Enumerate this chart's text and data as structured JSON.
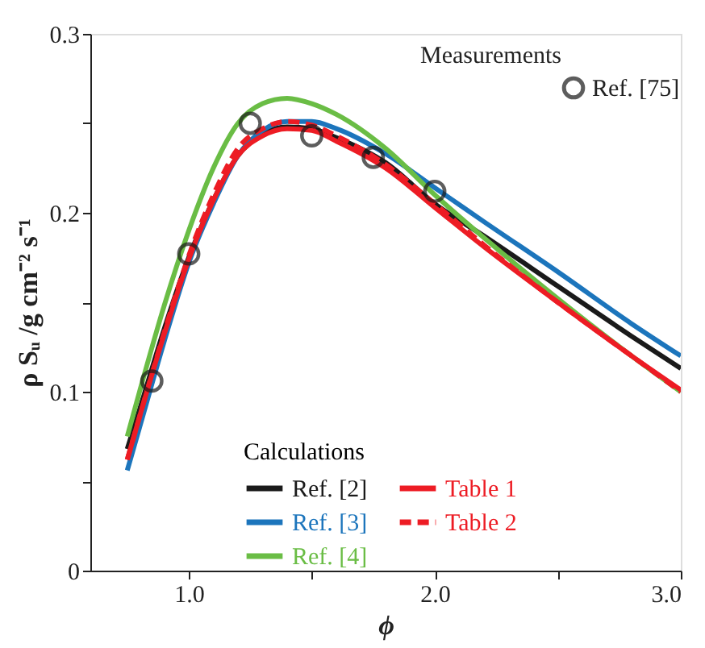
{
  "chart_data": {
    "type": "line",
    "xlabel": "ϕ",
    "ylabel": "ρ Sᵤ /g cm⁻² s⁻¹",
    "legend_title": "Calculations",
    "annotations": [
      "Measurements"
    ],
    "x": [
      0.75,
      0.8,
      0.9,
      1.0,
      1.1,
      1.2,
      1.3,
      1.4,
      1.5,
      1.6,
      1.8,
      2.0,
      2.2,
      2.5,
      2.8,
      3.0
    ],
    "series": [
      {
        "name": "Ref. [75]",
        "type": "scatter",
        "marker": "circle",
        "color": "#1a1a1a",
        "x": [
          0.85,
          1.0,
          1.25,
          1.5,
          1.75,
          2.0
        ],
        "values": [
          0.106,
          0.177,
          0.25,
          0.243,
          0.231,
          0.212
        ]
      },
      {
        "name": "Ref. [2]",
        "line_style": "solid",
        "color": "#1a1a1a",
        "values": [
          0.068,
          0.09,
          0.135,
          0.175,
          0.207,
          0.232,
          0.244,
          0.248,
          0.247,
          0.242,
          0.228,
          0.205,
          0.187,
          0.159,
          0.131,
          0.113
        ]
      },
      {
        "name": "Ref. [3]",
        "line_style": "solid",
        "color": "#1c75bc",
        "values": [
          0.056,
          0.08,
          0.128,
          0.172,
          0.205,
          0.232,
          0.246,
          0.251,
          0.251,
          0.247,
          0.233,
          0.214,
          0.195,
          0.167,
          0.138,
          0.12
        ]
      },
      {
        "name": "Ref. [4]",
        "line_style": "solid",
        "color": "#6abd45",
        "values": [
          0.075,
          0.1,
          0.148,
          0.19,
          0.225,
          0.25,
          0.261,
          0.264,
          0.261,
          0.255,
          0.236,
          0.21,
          0.186,
          0.152,
          0.12,
          0.1
        ]
      },
      {
        "name": "Table 1",
        "line_style": "solid",
        "color": "#ed1c24",
        "values": [
          0.062,
          0.086,
          0.132,
          0.174,
          0.207,
          0.232,
          0.243,
          0.247,
          0.246,
          0.24,
          0.225,
          0.203,
          0.181,
          0.15,
          0.12,
          0.101
        ]
      },
      {
        "name": "Table 2",
        "line_style": "dashed",
        "color": "#ed1c24",
        "values": [
          0.062,
          0.086,
          0.133,
          0.176,
          0.21,
          0.236,
          0.247,
          0.251,
          0.249,
          0.243,
          0.227,
          0.205,
          0.182,
          0.15,
          0.12,
          0.1
        ]
      }
    ],
    "xlim": [
      0.6,
      3.0
    ],
    "ylim": [
      0,
      0.3
    ],
    "xticks": [
      {
        "value": 1.0,
        "label": "1.0"
      },
      {
        "value": 1.5,
        "label": null
      },
      {
        "value": 2.0,
        "label": "2.0"
      },
      {
        "value": 2.5,
        "label": null
      },
      {
        "value": 3.0,
        "label": "3.0"
      }
    ],
    "yticks": [
      0,
      {
        "value": 0.05,
        "label": null
      },
      0.1,
      {
        "value": 0.15,
        "label": null
      },
      0.2,
      {
        "value": 0.25,
        "label": null
      },
      0.3
    ],
    "grid": false,
    "legend": "bottom right"
  }
}
